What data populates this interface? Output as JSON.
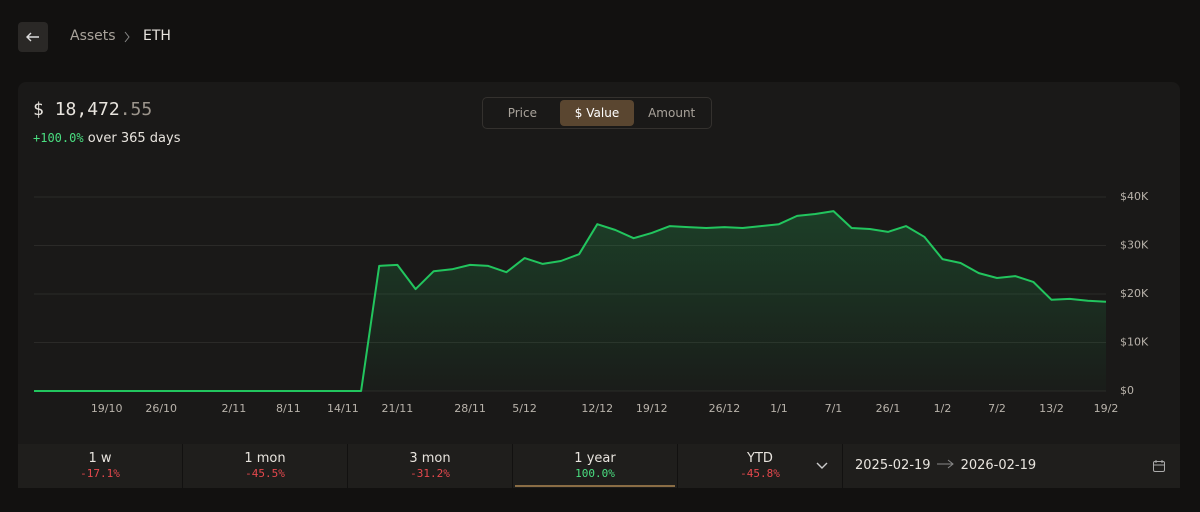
{
  "breadcrumb": [
    "Assets",
    "ETH"
  ],
  "summary": {
    "currency": "$",
    "integer": "18,472",
    "decimals": ".55",
    "change": "+100.0%",
    "period_text": "over 365 days"
  },
  "tabs": {
    "items": [
      "Price",
      "$ Value",
      "Amount"
    ],
    "active": 1
  },
  "chart_data": {
    "type": "line",
    "color": "#22c55e",
    "grid": true,
    "categories": [
      null,
      null,
      null,
      null,
      "19/10",
      null,
      null,
      "26/10",
      null,
      null,
      null,
      "2/11",
      null,
      null,
      "8/11",
      null,
      null,
      "14/11",
      null,
      null,
      "21/11",
      null,
      null,
      null,
      "28/11",
      null,
      null,
      "5/12",
      null,
      null,
      null,
      "12/12",
      null,
      null,
      "19/12",
      null,
      null,
      null,
      "26/12",
      null,
      null,
      "1/1",
      null,
      null,
      "7/1",
      null,
      null,
      "26/1",
      null,
      null,
      "1/2",
      null,
      null,
      "7/2",
      null,
      null,
      "13/2",
      null,
      null,
      "19/2"
    ],
    "values": [
      0,
      0,
      0,
      0,
      0,
      0,
      0,
      0,
      0,
      0,
      0,
      0,
      0,
      0,
      0,
      0,
      0,
      0,
      0,
      25800,
      26000,
      21000,
      24700,
      25100,
      26000,
      25800,
      24500,
      27400,
      26200,
      26800,
      28200,
      34400,
      33200,
      31500,
      32600,
      34000,
      33800,
      33600,
      33800,
      33600,
      34000,
      34400,
      36100,
      36500,
      37100,
      33600,
      33400,
      32800,
      34000,
      31800,
      27200,
      26400,
      24300,
      23300,
      23700,
      22500,
      18800,
      19000,
      18600,
      18400
    ],
    "ylim": [
      0,
      40000
    ],
    "yticks": [
      {
        "value": 0,
        "label": "$0"
      },
      {
        "value": 10000,
        "label": "$10K"
      },
      {
        "value": 20000,
        "label": "$20K"
      },
      {
        "value": 30000,
        "label": "$30K"
      },
      {
        "value": 40000,
        "label": "$40K"
      }
    ]
  },
  "periods": {
    "items": [
      {
        "label": "1 w",
        "change": "-17.1%"
      },
      {
        "label": "1 mon",
        "change": "-45.5%"
      },
      {
        "label": "3 mon",
        "change": "-31.2%"
      },
      {
        "label": "1 year",
        "change": "100.0%"
      },
      {
        "label": "YTD",
        "change": "-45.8%"
      }
    ],
    "active": 3
  },
  "date_range": {
    "from": "2025-02-19",
    "to": "2026-02-19"
  }
}
